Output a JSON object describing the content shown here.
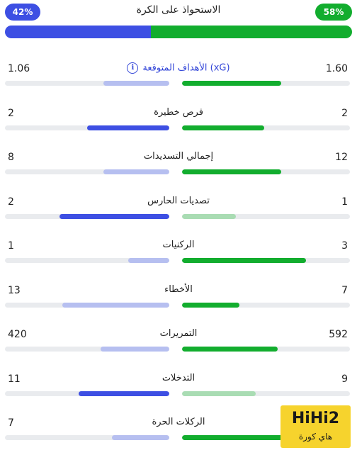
{
  "possession": {
    "title": "الاستحواذ على الكرة",
    "left_label": "42%",
    "right_label": "58%",
    "left_fraction": 0.42,
    "right_fraction": 0.58
  },
  "colors": {
    "left_strong": "#3d4fe3",
    "left_light": "#b6bff0",
    "right_strong": "#12ad2e",
    "right_light": "#a9dcb3",
    "track": "#e9ebee"
  },
  "stats": [
    {
      "label": "الأهداف المتوقعة (xG)",
      "left": "1.06",
      "right": "1.60",
      "left_fill": 0.4,
      "right_fill": 0.59,
      "left_strong": false,
      "right_strong": true,
      "info_icon": true
    },
    {
      "label": "فرص خطيرة",
      "left": "2",
      "right": "2",
      "left_fill": 0.5,
      "right_fill": 0.49,
      "left_strong": true,
      "right_strong": true,
      "info_icon": false
    },
    {
      "label": "إجمالي التسديدات",
      "left": "8",
      "right": "12",
      "left_fill": 0.4,
      "right_fill": 0.59,
      "left_strong": false,
      "right_strong": true,
      "info_icon": false
    },
    {
      "label": "تصديات الحارس",
      "left": "2",
      "right": "1",
      "left_fill": 0.67,
      "right_fill": 0.32,
      "left_strong": true,
      "right_strong": false,
      "info_icon": false
    },
    {
      "label": "الركنيات",
      "left": "1",
      "right": "3",
      "left_fill": 0.25,
      "right_fill": 0.74,
      "left_strong": false,
      "right_strong": true,
      "info_icon": false
    },
    {
      "label": "الأخطاء",
      "left": "13",
      "right": "7",
      "left_fill": 0.65,
      "right_fill": 0.34,
      "left_strong": false,
      "right_strong": true,
      "info_icon": false
    },
    {
      "label": "التمريرات",
      "left": "420",
      "right": "592",
      "left_fill": 0.42,
      "right_fill": 0.57,
      "left_strong": false,
      "right_strong": true,
      "info_icon": false
    },
    {
      "label": "التدخلات",
      "left": "11",
      "right": "9",
      "left_fill": 0.55,
      "right_fill": 0.44,
      "left_strong": true,
      "right_strong": false,
      "info_icon": false
    },
    {
      "label": "الركلات الحرة",
      "left": "7",
      "right": "",
      "left_fill": 0.35,
      "right_fill": 0.64,
      "left_strong": false,
      "right_strong": true,
      "info_icon": false
    }
  ],
  "watermark": {
    "brand": "HiHi2",
    "subtitle": "هاي كورة"
  }
}
